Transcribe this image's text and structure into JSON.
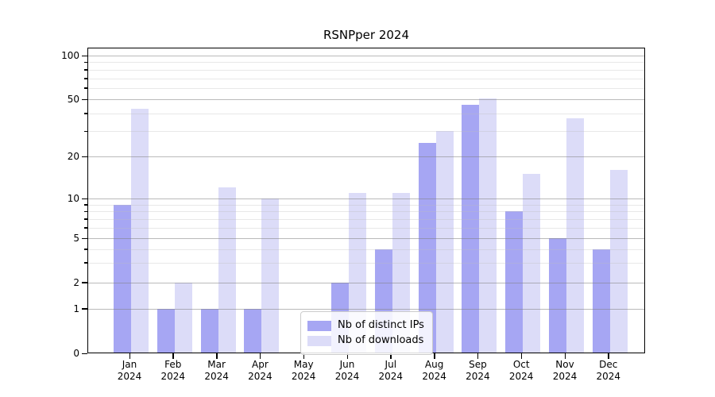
{
  "chart_data": {
    "type": "bar",
    "title": "RSNPper 2024",
    "categories": [
      "Jan",
      "Feb",
      "Mar",
      "Apr",
      "May",
      "Jun",
      "Jul",
      "Aug",
      "Sep",
      "Oct",
      "Nov",
      "Dec"
    ],
    "category_year": "2024",
    "series": [
      {
        "name": "Nb of distinct IPs",
        "color": "#a6a6f3",
        "values": [
          9,
          1,
          1,
          1,
          0,
          2,
          4,
          25,
          46,
          8,
          5,
          4
        ]
      },
      {
        "name": "Nb of downloads",
        "color": "#dcdcf8",
        "values": [
          43,
          2,
          12,
          10,
          0,
          11,
          11,
          30,
          51,
          15,
          37,
          16
        ]
      }
    ],
    "yticks": [
      0,
      1,
      2,
      5,
      10,
      20,
      50,
      100
    ],
    "yminorticks": [
      3,
      4,
      6,
      7,
      8,
      9,
      30,
      40,
      60,
      70,
      80,
      90
    ],
    "ylim": [
      0,
      113
    ],
    "yscale": "symlog",
    "grid": "horizontal major and minor",
    "legend_position": "lower center"
  }
}
